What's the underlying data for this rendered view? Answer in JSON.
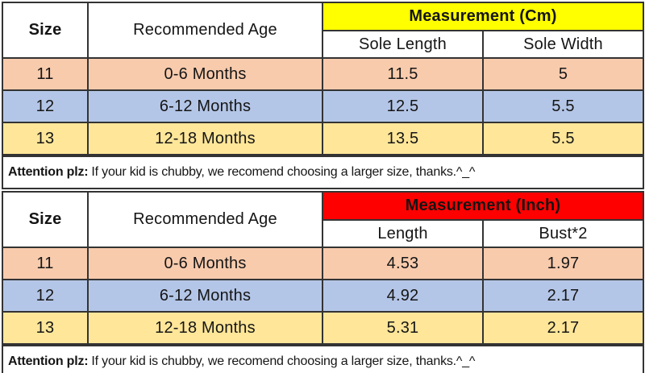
{
  "colors": {
    "border": "#333333",
    "group_header_cm_bg": "#FFFF00",
    "group_header_inch_bg": "#FF0000",
    "row_peach": "#F8CBAD",
    "row_blue": "#B4C6E7",
    "row_gold": "#FFE699"
  },
  "chart_data": [
    {
      "type": "table",
      "title": "Measurement (Cm)",
      "header": {
        "size": "Size",
        "age": "Recommended Age",
        "group": "Measurement (Cm)",
        "sub1": "Sole Length",
        "sub2": "Sole Width"
      },
      "group_header_bg": "#FFFF00",
      "rows": [
        {
          "size": "11",
          "age": "0-6 Months",
          "v1": "11.5",
          "v2": "5",
          "bg": "#F8CBAD"
        },
        {
          "size": "12",
          "age": "6-12 Months",
          "v1": "12.5",
          "v2": "5.5",
          "bg": "#B4C6E7"
        },
        {
          "size": "13",
          "age": "12-18 Months",
          "v1": "13.5",
          "v2": "5.5",
          "bg": "#FFE699"
        }
      ],
      "note": {
        "label": "Attention plz:",
        "text": "If your kid is chubby, we recomend choosing a larger size, thanks.^_^"
      }
    },
    {
      "type": "table",
      "title": "Measurement (Inch)",
      "header": {
        "size": "Size",
        "age": "Recommended Age",
        "group": "Measurement (Inch)",
        "sub1": "Length",
        "sub2": "Bust*2"
      },
      "group_header_bg": "#FF0000",
      "rows": [
        {
          "size": "11",
          "age": "0-6 Months",
          "v1": "4.53",
          "v2": "1.97",
          "bg": "#F8CBAD"
        },
        {
          "size": "12",
          "age": "6-12 Months",
          "v1": "4.92",
          "v2": "2.17",
          "bg": "#B4C6E7"
        },
        {
          "size": "13",
          "age": "12-18 Months",
          "v1": "5.31",
          "v2": "2.17",
          "bg": "#FFE699"
        }
      ],
      "note": {
        "label": "Attention plz:",
        "text": "If your kid is chubby, we recomend choosing a larger size, thanks.^_^"
      }
    }
  ]
}
